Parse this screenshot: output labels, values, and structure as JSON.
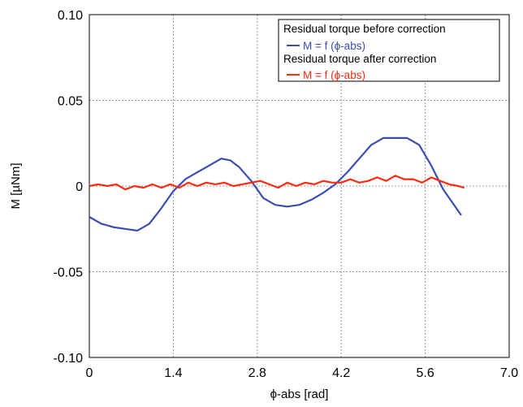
{
  "chart_data": {
    "type": "line",
    "xlabel": "ϕ-abs  [rad]",
    "ylabel": "M  [µNm]",
    "xlim": [
      0,
      7.0
    ],
    "ylim": [
      -0.1,
      0.1
    ],
    "xticks": [
      0,
      1.4,
      2.8,
      4.2,
      5.6,
      7.0
    ],
    "xtick_labels": [
      "0",
      "1.4",
      "2.8",
      "4.2",
      "5.6",
      "7.0"
    ],
    "yticks": [
      0.1,
      0.05,
      0,
      -0.05,
      -0.1
    ],
    "ytick_labels": [
      "0.10",
      "0.05",
      "0",
      "-0.05",
      "-0.10"
    ],
    "grid": true,
    "legend_position": "top-right",
    "legend_groups": [
      {
        "title": "Residual torque before correction",
        "entry": "M = f (ϕ-abs)",
        "color": "#3a4db0"
      },
      {
        "title": "Residual torque after correction",
        "entry": "M = f (ϕ-abs)",
        "color": "#ff2a10"
      }
    ],
    "series": [
      {
        "color": "#3a4db0",
        "x": [
          0,
          0.2,
          0.4,
          0.6,
          0.8,
          1.0,
          1.2,
          1.4,
          1.6,
          1.8,
          2.0,
          2.2,
          2.35,
          2.5,
          2.7,
          2.9,
          3.1,
          3.3,
          3.5,
          3.7,
          3.9,
          4.1,
          4.3,
          4.5,
          4.7,
          4.9,
          5.1,
          5.3,
          5.5,
          5.7,
          5.9,
          6.1,
          6.2
        ],
        "y": [
          -0.018,
          -0.022,
          -0.024,
          -0.025,
          -0.026,
          -0.022,
          -0.013,
          -0.003,
          0.004,
          0.008,
          0.012,
          0.016,
          0.015,
          0.011,
          0.003,
          -0.007,
          -0.011,
          -0.012,
          -0.011,
          -0.008,
          -0.004,
          0.001,
          0.008,
          0.016,
          0.024,
          0.028,
          0.028,
          0.028,
          0.024,
          0.012,
          -0.002,
          -0.012,
          -0.017
        ]
      },
      {
        "color": "#ff2a10",
        "x": [
          0,
          0.15,
          0.3,
          0.45,
          0.6,
          0.75,
          0.9,
          1.05,
          1.2,
          1.35,
          1.5,
          1.65,
          1.8,
          1.95,
          2.1,
          2.25,
          2.4,
          2.55,
          2.7,
          2.85,
          3.0,
          3.15,
          3.3,
          3.45,
          3.6,
          3.75,
          3.9,
          4.05,
          4.2,
          4.35,
          4.5,
          4.65,
          4.8,
          4.95,
          5.1,
          5.25,
          5.4,
          5.55,
          5.7,
          5.85,
          6.0,
          6.15,
          6.25
        ],
        "y": [
          0.0,
          0.001,
          0.0,
          0.001,
          -0.002,
          0.0,
          -0.001,
          0.001,
          -0.001,
          0.001,
          -0.001,
          0.002,
          0.0,
          0.002,
          0.001,
          0.002,
          0.0,
          0.001,
          0.002,
          0.003,
          0.001,
          -0.001,
          0.002,
          0.0,
          0.002,
          0.001,
          0.003,
          0.002,
          0.002,
          0.004,
          0.002,
          0.003,
          0.005,
          0.003,
          0.006,
          0.004,
          0.004,
          0.002,
          0.005,
          0.003,
          0.001,
          0.0,
          -0.001
        ]
      }
    ]
  }
}
